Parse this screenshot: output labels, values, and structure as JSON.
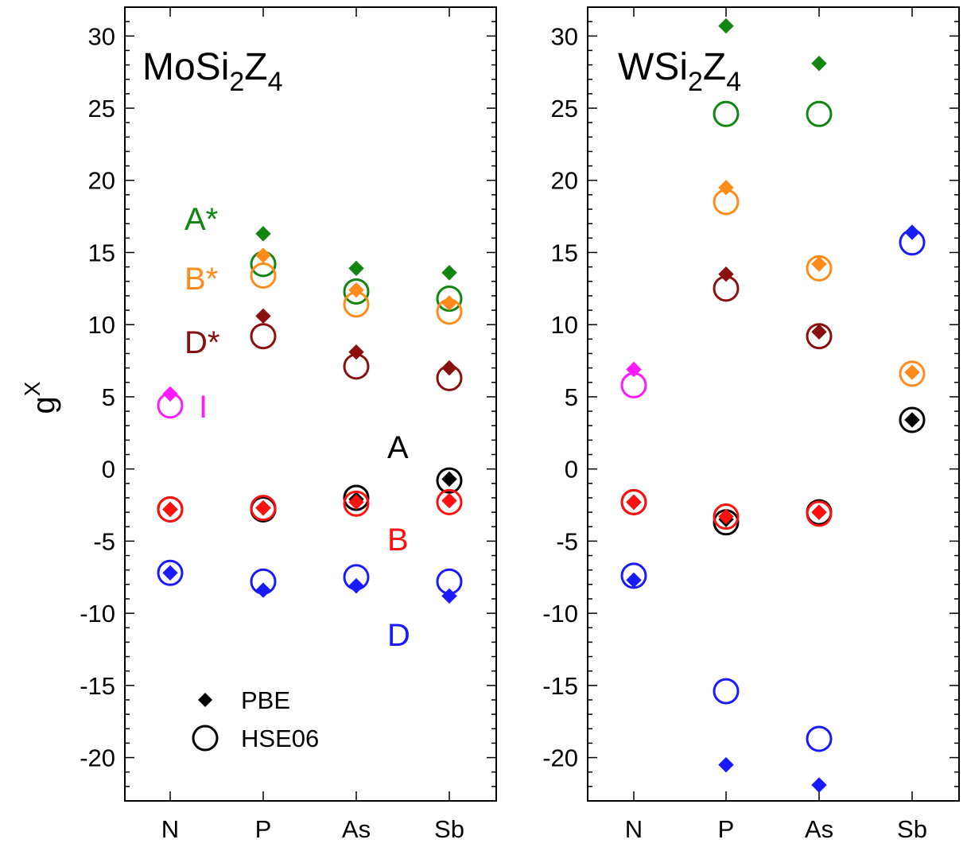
{
  "chart_data": {
    "type": "scatter",
    "ylabel": "g",
    "ylabel_superscript": "X",
    "ylim": [
      -23,
      32
    ],
    "yticks": [
      -20,
      -15,
      -10,
      -5,
      0,
      5,
      10,
      15,
      20,
      25,
      30
    ],
    "categories": [
      "N",
      "P",
      "As",
      "Sb"
    ],
    "methods": [
      {
        "name": "PBE",
        "marker": "diamond-filled"
      },
      {
        "name": "HSE06",
        "marker": "circle-open"
      }
    ],
    "labels": {
      "A_star": "A*",
      "B_star": "B*",
      "D_star": "D*",
      "I": "I",
      "A": "A",
      "B": "B",
      "D": "D"
    },
    "colors": {
      "A_star": "#128512",
      "B_star": "#ff8c1a",
      "D_star": "#8a0f0f",
      "I": "#ff19ff",
      "A": "#000000",
      "B": "#ff1010",
      "D": "#1a1aff"
    },
    "panels": [
      {
        "title_main": "MoSi",
        "title_sub1": "2",
        "title_mid": "Z",
        "title_sub2": "4",
        "series": [
          {
            "name": "A*",
            "key": "A_star",
            "pbe": [
              null,
              16.3,
              13.9,
              13.6
            ],
            "hse06": [
              null,
              14.2,
              12.3,
              11.8
            ]
          },
          {
            "name": "B*",
            "key": "B_star",
            "pbe": [
              null,
              14.8,
              12.4,
              11.5
            ],
            "hse06": [
              null,
              13.4,
              11.4,
              10.9
            ]
          },
          {
            "name": "D*",
            "key": "D_star",
            "pbe": [
              null,
              10.6,
              8.1,
              7.0
            ],
            "hse06": [
              null,
              9.2,
              7.1,
              6.3
            ]
          },
          {
            "name": "I",
            "key": "I",
            "pbe": [
              5.2,
              null,
              null,
              null
            ],
            "hse06": [
              4.4,
              null,
              null,
              null
            ]
          },
          {
            "name": "A",
            "key": "A",
            "pbe": [
              -2.8,
              -2.7,
              -2.1,
              -0.7
            ],
            "hse06": [
              -2.8,
              -2.8,
              -2.0,
              -0.8
            ]
          },
          {
            "name": "B",
            "key": "B",
            "pbe": [
              -2.8,
              -2.7,
              -2.3,
              -2.2
            ],
            "hse06": [
              -2.8,
              -2.7,
              -2.4,
              -2.3
            ]
          },
          {
            "name": "D",
            "key": "D",
            "pbe": [
              -7.2,
              -8.4,
              -8.1,
              -8.8
            ],
            "hse06": [
              -7.2,
              -7.8,
              -7.5,
              -7.8
            ]
          }
        ]
      },
      {
        "title_main": "WSi",
        "title_sub1": "2",
        "title_mid": "Z",
        "title_sub2": "4",
        "series": [
          {
            "name": "A*",
            "key": "A_star",
            "pbe": [
              null,
              30.7,
              28.1,
              null
            ],
            "hse06": [
              null,
              24.6,
              24.6,
              null
            ]
          },
          {
            "name": "B*",
            "key": "B_star",
            "pbe": [
              null,
              19.5,
              14.2,
              6.7
            ],
            "hse06": [
              null,
              18.5,
              13.9,
              6.6
            ]
          },
          {
            "name": "D*",
            "key": "D_star",
            "pbe": [
              null,
              13.5,
              9.5,
              null
            ],
            "hse06": [
              null,
              12.5,
              9.2,
              null
            ]
          },
          {
            "name": "I",
            "key": "I",
            "pbe": [
              6.9,
              null,
              null,
              null
            ],
            "hse06": [
              5.8,
              null,
              null,
              null
            ]
          },
          {
            "name": "A",
            "key": "A",
            "pbe": [
              -2.3,
              -3.5,
              -3.0,
              3.4
            ],
            "hse06": [
              -2.3,
              -3.7,
              -3.0,
              3.4
            ]
          },
          {
            "name": "B",
            "key": "B",
            "pbe": [
              -2.3,
              -3.3,
              -3.0,
              null
            ],
            "hse06": [
              -2.3,
              -3.3,
              -3.1,
              null
            ]
          },
          {
            "name": "D",
            "key": "D",
            "pbe": [
              -7.7,
              -20.5,
              -21.9,
              16.4
            ],
            "hse06": [
              -7.4,
              -15.4,
              -18.7,
              15.7
            ]
          }
        ]
      }
    ]
  }
}
